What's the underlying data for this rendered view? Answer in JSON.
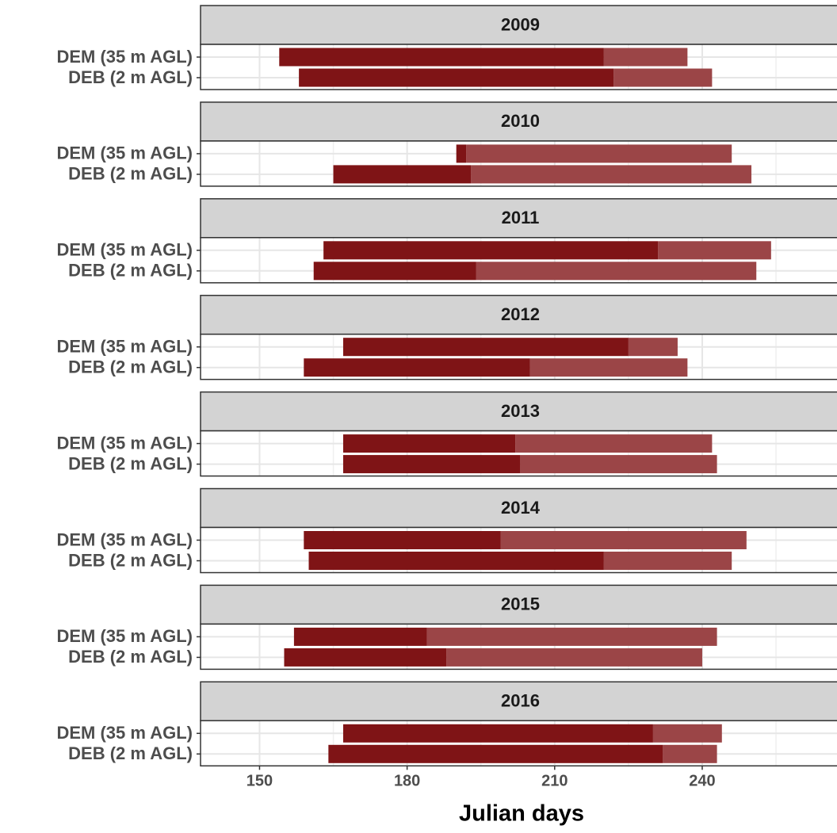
{
  "chart_data": {
    "type": "range-bar",
    "x_label": "Julian days",
    "categories": [
      "DEM (35 m AGL)",
      "DEB (2 m AGL)"
    ],
    "dark_color": "#7f1416",
    "light_color": "#9b4547",
    "xlim": [
      138,
      267.4
    ],
    "xticks": [
      150,
      180,
      210,
      240
    ],
    "minor_xticks": [
      165,
      195,
      225,
      255
    ],
    "grid": true,
    "facets": [
      {
        "label": "2009",
        "start": [
          154,
          158
        ],
        "mid": [
          220,
          222
        ],
        "end": [
          237,
          242
        ]
      },
      {
        "label": "2010",
        "start": [
          190,
          165
        ],
        "mid": [
          192,
          193
        ],
        "end": [
          246,
          250
        ]
      },
      {
        "label": "2011",
        "start": [
          163,
          161
        ],
        "mid": [
          231,
          194
        ],
        "end": [
          254,
          251
        ]
      },
      {
        "label": "2012",
        "start": [
          167,
          159
        ],
        "mid": [
          225,
          205
        ],
        "end": [
          235,
          237
        ]
      },
      {
        "label": "2013",
        "start": [
          167,
          167
        ],
        "mid": [
          202,
          203
        ],
        "end": [
          242,
          243
        ]
      },
      {
        "label": "2014",
        "start": [
          159,
          160
        ],
        "mid": [
          199,
          220
        ],
        "end": [
          249,
          246
        ]
      },
      {
        "label": "2015",
        "start": [
          157,
          155
        ],
        "mid": [
          184,
          188
        ],
        "end": [
          243,
          240
        ]
      },
      {
        "label": "2016",
        "start": [
          167,
          164
        ],
        "mid": [
          230,
          232
        ],
        "end": [
          244,
          243
        ]
      }
    ]
  }
}
